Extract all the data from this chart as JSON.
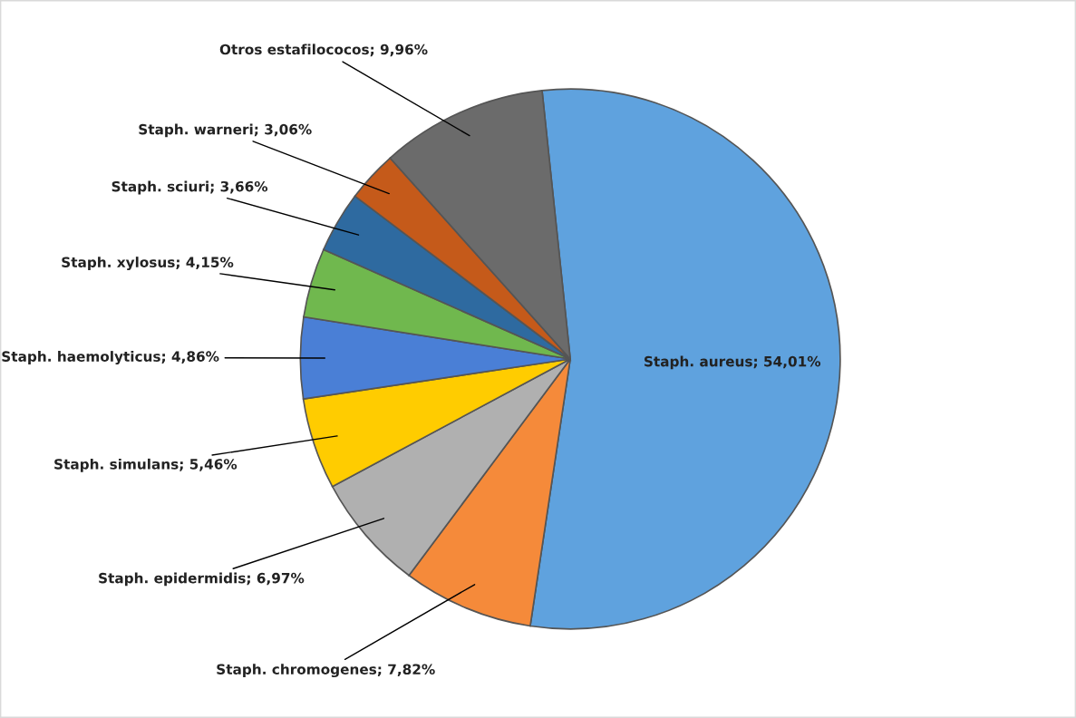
{
  "chart_data": {
    "type": "pie",
    "categories": [
      "Staph. aureus",
      "Staph. chromogenes",
      "Staph. epidermidis",
      "Staph. simulans",
      "Staph. haemolyticus",
      "Staph. xylosus",
      "Staph. sciuri",
      "Staph. warneri",
      "Otros estafilococos"
    ],
    "values": [
      54.01,
      7.82,
      6.97,
      5.46,
      4.86,
      4.15,
      3.66,
      3.06,
      9.96
    ],
    "value_labels": [
      "54,01%",
      "7,82%",
      "6,97%",
      "5,46%",
      "4,86%",
      "4,15%",
      "3,66%",
      "3,06%",
      "9,96%"
    ],
    "colors": [
      "#5fa2de",
      "#f58a3a",
      "#b0b0b0",
      "#ffcc00",
      "#4a7fd6",
      "#70b84e",
      "#2e6aa0",
      "#c55a1a",
      "#6b6b6b"
    ],
    "legend": false
  }
}
